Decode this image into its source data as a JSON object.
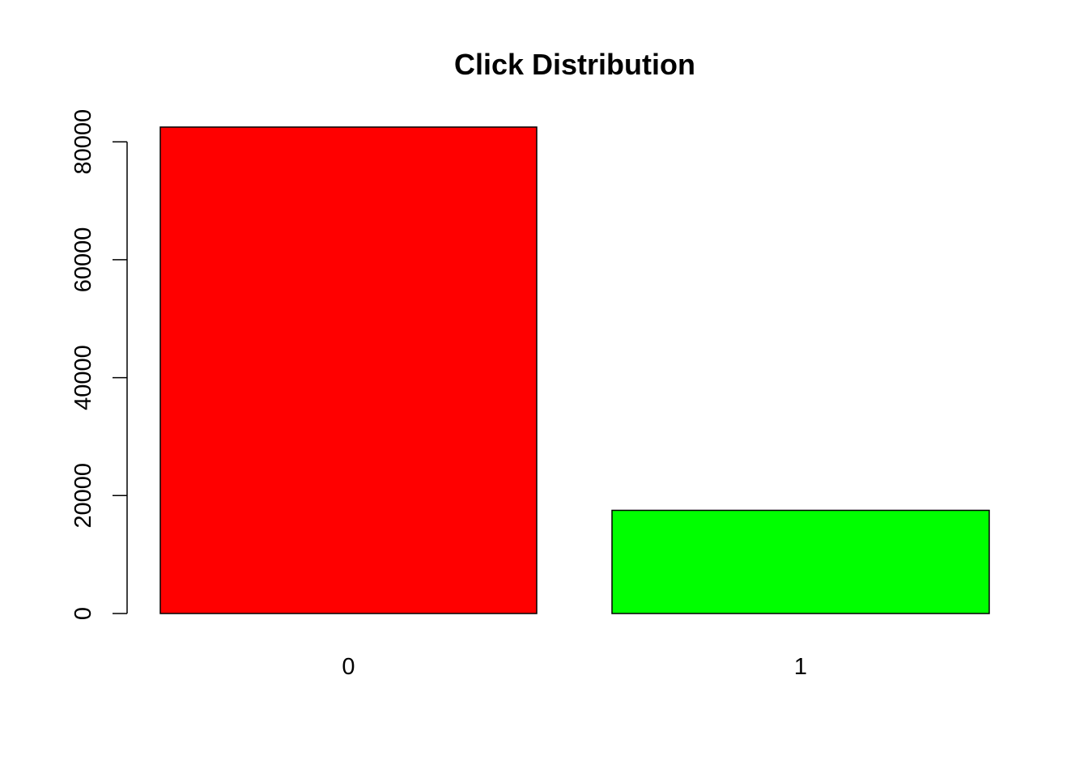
{
  "chart_data": {
    "type": "bar",
    "title": "Click Distribution",
    "xlabel": "",
    "ylabel": "",
    "categories": [
      "0",
      "1"
    ],
    "values": [
      82500,
      17500
    ],
    "ylim": [
      0,
      82500
    ],
    "yticks": [
      0,
      20000,
      40000,
      60000,
      80000
    ],
    "ytick_labels": [
      "0",
      "20000",
      "40000",
      "60000",
      "80000"
    ],
    "colors": [
      "#ff0000",
      "#00ff00"
    ],
    "bar_outline_color": "#000000",
    "grid": false,
    "legend": "none"
  }
}
